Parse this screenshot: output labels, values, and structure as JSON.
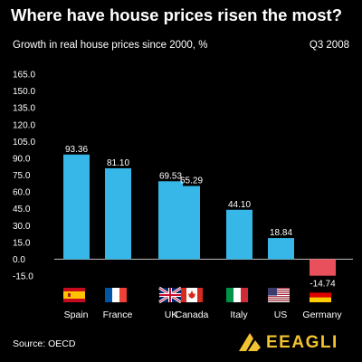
{
  "header": {
    "title": "Where have house prices risen the most?",
    "subtitle": "Growth in real house prices since 2000, %",
    "period": "Q3 2008"
  },
  "footer": {
    "source": "Source: OECD",
    "brand": "EEAGLI"
  },
  "colors": {
    "bar": "#37b7e8",
    "negative_bar": "#e8505b",
    "gridline": "#bbbbbb"
  },
  "chart_data": {
    "type": "bar",
    "title": "Where have house prices risen the most?",
    "subtitle": "Growth in real house prices since 2000, %",
    "categories": [
      "Spain",
      "France",
      "UK",
      "Canada",
      "Italy",
      "US",
      "Germany"
    ],
    "values": [
      93.36,
      81.1,
      69.53,
      65.29,
      44.1,
      18.84,
      -14.74
    ],
    "data_labels": [
      "93.36",
      "81.10",
      "69.53",
      "65.29",
      "44.10",
      "18.84",
      "-14.74"
    ],
    "flags": [
      "spain-flag",
      "france-flag",
      "uk-flag",
      "canada-flag",
      "italy-flag",
      "us-flag",
      "germany-flag"
    ],
    "yticks": [
      "165.0",
      "150.0",
      "135.0",
      "120.0",
      "105.0",
      "90.0",
      "75.0",
      "60.0",
      "45.0",
      "30.0",
      "15.0",
      "0.0",
      "-15.0"
    ],
    "ylim": [
      -15,
      165
    ],
    "grid": false
  }
}
